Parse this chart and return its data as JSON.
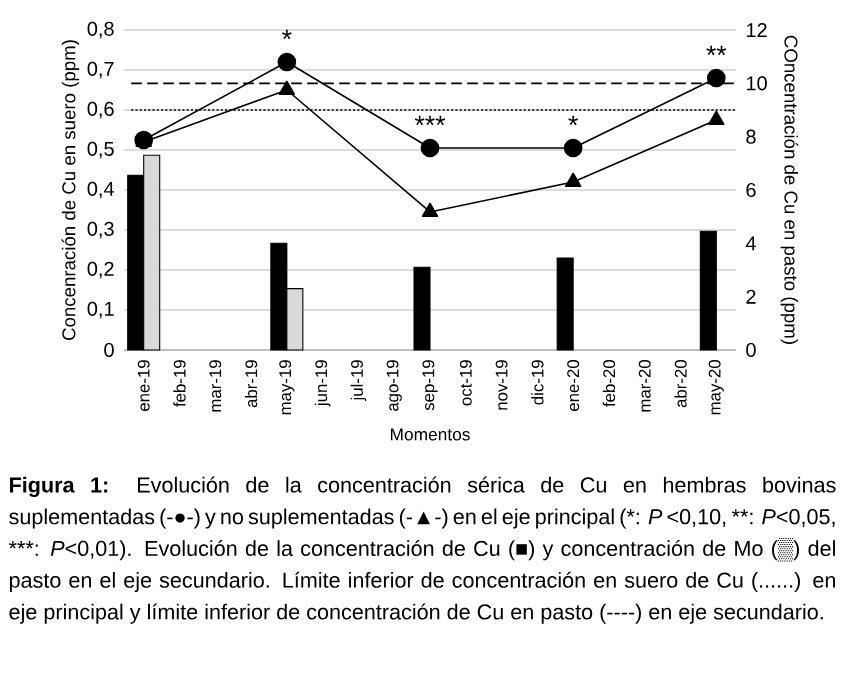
{
  "chart_data": {
    "type": "line",
    "categories": [
      "ene-19",
      "feb-19",
      "mar-19",
      "abr-19",
      "may-19",
      "jun-19",
      "jul-19",
      "ago-19",
      "sep-19",
      "oct-19",
      "nov-19",
      "dic-19",
      "ene-20",
      "feb-20",
      "mar-20",
      "abr-20",
      "may-20"
    ],
    "series": [
      {
        "type": "bar",
        "axis": "y2",
        "color": "#000000",
        "values": [
          6.55,
          null,
          null,
          null,
          4.0,
          null,
          null,
          null,
          3.1,
          null,
          null,
          null,
          3.45,
          null,
          null,
          null,
          4.45
        ]
      },
      {
        "type": "bar",
        "axis": "y2",
        "color": "#d9d9d9",
        "values": [
          7.3,
          null,
          null,
          null,
          2.3,
          null,
          null,
          null,
          null,
          null,
          null,
          null,
          null,
          null,
          null,
          null,
          null
        ]
      },
      {
        "type": "line",
        "marker": "circle",
        "color": "#000000",
        "values": [
          0.525,
          null,
          null,
          null,
          0.72,
          null,
          null,
          null,
          0.505,
          null,
          null,
          null,
          0.505,
          null,
          null,
          null,
          0.68
        ]
      },
      {
        "type": "line",
        "marker": "triangle",
        "color": "#000000",
        "values": [
          0.52,
          null,
          null,
          null,
          0.65,
          null,
          null,
          null,
          0.345,
          null,
          null,
          null,
          0.42,
          null,
          null,
          null,
          0.575
        ]
      }
    ],
    "xlabel": "Momentos",
    "ylabel": "Concenración de Cu en suero (ppm)",
    "y2label": "COncentración de Cu en pasto (ppm)",
    "ylim": [
      0,
      0.8
    ],
    "yticks": [
      {
        "value": 0,
        "label": "0"
      },
      {
        "value": 0.1,
        "label": "0,1"
      },
      {
        "value": 0.2,
        "label": "0,2"
      },
      {
        "value": 0.3,
        "label": "0,3"
      },
      {
        "value": 0.4,
        "label": "0,4"
      },
      {
        "value": 0.5,
        "label": "0,5"
      },
      {
        "value": 0.6,
        "label": "0,6"
      },
      {
        "value": 0.7,
        "label": "0,7"
      },
      {
        "value": 0.8,
        "label": "0,8"
      }
    ],
    "y2lim": [
      0,
      12
    ],
    "y2ticks": [
      0,
      2,
      4,
      6,
      8,
      10,
      12
    ],
    "grid": "y",
    "legend": false,
    "line_style": "solid",
    "ref_lines": [
      {
        "axis": "y",
        "value": 0.6,
        "color": "#000000",
        "line_style": "dotted"
      },
      {
        "axis": "y2",
        "value": 10,
        "color": "#000000",
        "line_style": "dashed"
      }
    ],
    "annotations": [
      {
        "text": "*",
        "x": "may-19",
        "y": 0.72
      },
      {
        "text": "***",
        "x": "sep-19",
        "y": 0.505
      },
      {
        "text": "*",
        "x": "ene-20",
        "y": 0.505
      },
      {
        "text": "**",
        "x": "may-20",
        "y": 0.68
      },
      "**Figura 1:** Evolución de la concentración sérica de Cu en hembras bovinas suplementadas (-●-) y no suplementadas (-▲-) en el eje principal (*:",
      "*P* <0,10,",
      "**:",
      "*P*<0,05,",
      "***:",
      "*P*<0,01). Evolución de la concentración de Cu (■) y concentración de Mo (▒) del pasto en el eje secundario. Límite inferior de concentración en suero de Cu (......) en eje principal y límite inferior de concentración de Cu en pasto (----) en eje secundario."
    ]
  }
}
